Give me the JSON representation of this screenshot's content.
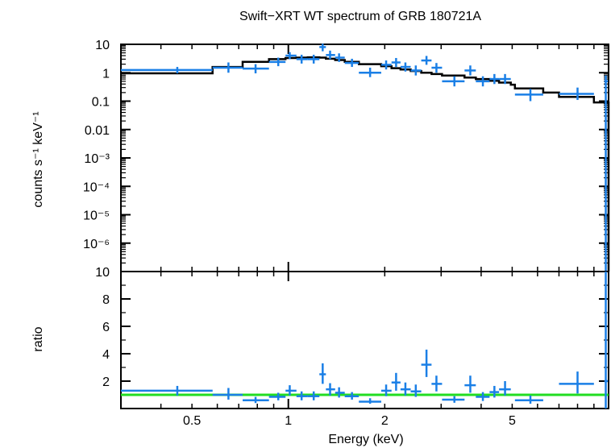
{
  "chart_data": [
    {
      "type": "scatter",
      "title": "Swift−XRT WT spectrum of GRB 180721A",
      "xlabel": "Energy (keV)",
      "ylabel": "counts s⁻¹ keV⁻¹",
      "xscale": "log",
      "yscale": "log",
      "xlim": [
        0.3,
        10.0
      ],
      "ylim": [
        1e-07,
        10
      ],
      "x_tick_labels": [
        "0.5",
        "1",
        "2",
        "5"
      ],
      "y_tick_labels": [
        "10",
        "1",
        "0.1",
        "0.01",
        "10⁻³",
        "10⁻⁴",
        "10⁻⁵",
        "10⁻⁶"
      ],
      "colors": {
        "data": "#1a7fe6",
        "model": "#000000"
      },
      "series": [
        {
          "name": "",
          "kind": "data",
          "points": [
            {
              "x": 0.45,
              "xlo": 0.3,
              "xhi": 0.58,
              "y": 1.25,
              "ylo": 0.95,
              "yhi": 1.6
            },
            {
              "x": 0.65,
              "xlo": 0.58,
              "xhi": 0.72,
              "y": 1.5,
              "ylo": 1.0,
              "yhi": 2.3
            },
            {
              "x": 0.79,
              "xlo": 0.72,
              "xhi": 0.87,
              "y": 1.4,
              "ylo": 0.95,
              "yhi": 2.0
            },
            {
              "x": 0.93,
              "xlo": 0.87,
              "xhi": 0.98,
              "y": 2.4,
              "ylo": 1.7,
              "yhi": 3.4
            },
            {
              "x": 1.01,
              "xlo": 0.98,
              "xhi": 1.06,
              "y": 4.0,
              "ylo": 3.0,
              "yhi": 5.3
            },
            {
              "x": 1.1,
              "xlo": 1.06,
              "xhi": 1.15,
              "y": 3.0,
              "ylo": 2.1,
              "yhi": 4.3
            },
            {
              "x": 1.2,
              "xlo": 1.15,
              "xhi": 1.25,
              "y": 3.0,
              "ylo": 2.1,
              "yhi": 4.3
            },
            {
              "x": 1.28,
              "xlo": 1.25,
              "xhi": 1.31,
              "y": 8.0,
              "ylo": 5.7,
              "yhi": 10.5
            },
            {
              "x": 1.35,
              "xlo": 1.31,
              "xhi": 1.4,
              "y": 4.2,
              "ylo": 3.0,
              "yhi": 6.0
            },
            {
              "x": 1.44,
              "xlo": 1.4,
              "xhi": 1.5,
              "y": 3.4,
              "ylo": 2.4,
              "yhi": 4.8
            },
            {
              "x": 1.58,
              "xlo": 1.5,
              "xhi": 1.66,
              "y": 2.2,
              "ylo": 1.6,
              "yhi": 3.1
            },
            {
              "x": 1.8,
              "xlo": 1.66,
              "xhi": 1.95,
              "y": 1.0,
              "ylo": 0.7,
              "yhi": 1.5
            },
            {
              "x": 2.02,
              "xlo": 1.95,
              "xhi": 2.1,
              "y": 1.9,
              "ylo": 1.3,
              "yhi": 2.7
            },
            {
              "x": 2.17,
              "xlo": 2.1,
              "xhi": 2.24,
              "y": 2.3,
              "ylo": 1.6,
              "yhi": 3.3
            },
            {
              "x": 2.32,
              "xlo": 2.24,
              "xhi": 2.41,
              "y": 1.6,
              "ylo": 1.1,
              "yhi": 2.3
            },
            {
              "x": 2.5,
              "xlo": 2.41,
              "xhi": 2.6,
              "y": 1.2,
              "ylo": 0.8,
              "yhi": 1.8
            },
            {
              "x": 2.7,
              "xlo": 2.6,
              "xhi": 2.8,
              "y": 2.7,
              "ylo": 1.9,
              "yhi": 3.9
            },
            {
              "x": 2.9,
              "xlo": 2.8,
              "xhi": 3.02,
              "y": 1.5,
              "ylo": 1.0,
              "yhi": 2.2
            },
            {
              "x": 3.3,
              "xlo": 3.02,
              "xhi": 3.55,
              "y": 0.5,
              "ylo": 0.33,
              "yhi": 0.75
            },
            {
              "x": 3.7,
              "xlo": 3.55,
              "xhi": 3.85,
              "y": 1.2,
              "ylo": 0.8,
              "yhi": 1.8
            },
            {
              "x": 4.05,
              "xlo": 3.85,
              "xhi": 4.25,
              "y": 0.5,
              "ylo": 0.33,
              "yhi": 0.75
            },
            {
              "x": 4.4,
              "xlo": 4.25,
              "xhi": 4.55,
              "y": 0.6,
              "ylo": 0.4,
              "yhi": 0.9
            },
            {
              "x": 4.75,
              "xlo": 4.55,
              "xhi": 4.95,
              "y": 0.6,
              "ylo": 0.4,
              "yhi": 0.9
            },
            {
              "x": 5.7,
              "xlo": 5.1,
              "xhi": 6.25,
              "y": 0.17,
              "ylo": 0.1,
              "yhi": 0.27
            },
            {
              "x": 8.0,
              "xlo": 7.0,
              "xhi": 9.0,
              "y": 0.18,
              "ylo": 0.11,
              "yhi": 0.3
            },
            {
              "x": 9.8,
              "xlo": 9.7,
              "xhi": 9.95,
              "y": 0.5,
              "ylo": 1e-07,
              "yhi": 0.8
            }
          ]
        },
        {
          "name": "",
          "kind": "model_step",
          "steps": [
            {
              "x0": 0.3,
              "x1": 0.58,
              "y": 0.95
            },
            {
              "x0": 0.58,
              "x1": 0.72,
              "y": 1.6
            },
            {
              "x0": 0.72,
              "x1": 0.87,
              "y": 2.4
            },
            {
              "x0": 0.87,
              "x1": 0.98,
              "y": 3.0
            },
            {
              "x0": 0.98,
              "x1": 1.06,
              "y": 3.3
            },
            {
              "x0": 1.06,
              "x1": 1.15,
              "y": 3.4
            },
            {
              "x0": 1.15,
              "x1": 1.25,
              "y": 3.5
            },
            {
              "x0": 1.25,
              "x1": 1.31,
              "y": 3.4
            },
            {
              "x0": 1.31,
              "x1": 1.4,
              "y": 3.1
            },
            {
              "x0": 1.4,
              "x1": 1.5,
              "y": 2.8
            },
            {
              "x0": 1.5,
              "x1": 1.66,
              "y": 2.4
            },
            {
              "x0": 1.66,
              "x1": 1.95,
              "y": 2.0
            },
            {
              "x0": 1.95,
              "x1": 2.1,
              "y": 1.7
            },
            {
              "x0": 2.1,
              "x1": 2.24,
              "y": 1.45
            },
            {
              "x0": 2.24,
              "x1": 2.41,
              "y": 1.3
            },
            {
              "x0": 2.41,
              "x1": 2.6,
              "y": 1.15
            },
            {
              "x0": 2.6,
              "x1": 2.8,
              "y": 1.0
            },
            {
              "x0": 2.8,
              "x1": 3.02,
              "y": 0.9
            },
            {
              "x0": 3.02,
              "x1": 3.55,
              "y": 0.8
            },
            {
              "x0": 3.55,
              "x1": 3.85,
              "y": 0.68
            },
            {
              "x0": 3.85,
              "x1": 4.25,
              "y": 0.6
            },
            {
              "x0": 4.25,
              "x1": 4.55,
              "y": 0.52
            },
            {
              "x0": 4.55,
              "x1": 4.95,
              "y": 0.45
            },
            {
              "x0": 4.95,
              "x1": 5.1,
              "y": 0.38
            },
            {
              "x0": 5.1,
              "x1": 6.25,
              "y": 0.28
            },
            {
              "x0": 6.25,
              "x1": 7.0,
              "y": 0.2
            },
            {
              "x0": 7.0,
              "x1": 9.0,
              "y": 0.14
            },
            {
              "x0": 9.0,
              "x1": 10.0,
              "y": 0.09
            }
          ]
        }
      ]
    },
    {
      "type": "scatter",
      "xlabel": "Energy (keV)",
      "ylabel": "ratio",
      "xscale": "log",
      "yscale": "linear",
      "xlim": [
        0.3,
        10.0
      ],
      "ylim": [
        0,
        10
      ],
      "x_tick_labels": [
        "0.5",
        "1",
        "2",
        "5"
      ],
      "y_tick_labels": [
        "10",
        "8",
        "6",
        "4",
        "2"
      ],
      "colors": {
        "data": "#1a7fe6",
        "reference": "#22dd22"
      },
      "reference_line": 1.0,
      "series": [
        {
          "name": "",
          "kind": "data",
          "points": [
            {
              "x": 0.45,
              "xlo": 0.3,
              "xhi": 0.58,
              "y": 1.3,
              "ylo": 0.95,
              "yhi": 1.65
            },
            {
              "x": 0.65,
              "xlo": 0.58,
              "xhi": 0.72,
              "y": 1.0,
              "ylo": 0.65,
              "yhi": 1.5
            },
            {
              "x": 0.79,
              "xlo": 0.72,
              "xhi": 0.87,
              "y": 0.6,
              "ylo": 0.4,
              "yhi": 0.85
            },
            {
              "x": 0.93,
              "xlo": 0.87,
              "xhi": 0.98,
              "y": 0.85,
              "ylo": 0.6,
              "yhi": 1.15
            },
            {
              "x": 1.01,
              "xlo": 0.98,
              "xhi": 1.06,
              "y": 1.3,
              "ylo": 0.95,
              "yhi": 1.7
            },
            {
              "x": 1.1,
              "xlo": 1.06,
              "xhi": 1.15,
              "y": 0.9,
              "ylo": 0.6,
              "yhi": 1.25
            },
            {
              "x": 1.2,
              "xlo": 1.15,
              "xhi": 1.25,
              "y": 0.9,
              "ylo": 0.6,
              "yhi": 1.25
            },
            {
              "x": 1.28,
              "xlo": 1.25,
              "xhi": 1.31,
              "y": 2.5,
              "ylo": 1.8,
              "yhi": 3.3
            },
            {
              "x": 1.35,
              "xlo": 1.31,
              "xhi": 1.4,
              "y": 1.4,
              "ylo": 0.95,
              "yhi": 1.85
            },
            {
              "x": 1.44,
              "xlo": 1.4,
              "xhi": 1.5,
              "y": 1.15,
              "ylo": 0.8,
              "yhi": 1.55
            },
            {
              "x": 1.58,
              "xlo": 1.5,
              "xhi": 1.66,
              "y": 0.9,
              "ylo": 0.65,
              "yhi": 1.2
            },
            {
              "x": 1.8,
              "xlo": 1.66,
              "xhi": 1.95,
              "y": 0.5,
              "ylo": 0.35,
              "yhi": 0.75
            },
            {
              "x": 2.02,
              "xlo": 1.95,
              "xhi": 2.1,
              "y": 1.3,
              "ylo": 0.9,
              "yhi": 1.75
            },
            {
              "x": 2.17,
              "xlo": 2.1,
              "xhi": 2.24,
              "y": 1.9,
              "ylo": 1.3,
              "yhi": 2.6
            },
            {
              "x": 2.32,
              "xlo": 2.24,
              "xhi": 2.41,
              "y": 1.4,
              "ylo": 0.95,
              "yhi": 1.9
            },
            {
              "x": 2.5,
              "xlo": 2.41,
              "xhi": 2.6,
              "y": 1.25,
              "ylo": 0.85,
              "yhi": 1.75
            },
            {
              "x": 2.7,
              "xlo": 2.6,
              "xhi": 2.8,
              "y": 3.2,
              "ylo": 2.3,
              "yhi": 4.3
            },
            {
              "x": 2.9,
              "xlo": 2.8,
              "xhi": 3.02,
              "y": 1.8,
              "ylo": 1.25,
              "yhi": 2.4
            },
            {
              "x": 3.3,
              "xlo": 3.02,
              "xhi": 3.55,
              "y": 0.65,
              "ylo": 0.42,
              "yhi": 0.9
            },
            {
              "x": 3.7,
              "xlo": 3.55,
              "xhi": 3.85,
              "y": 1.7,
              "ylo": 1.15,
              "yhi": 2.4
            },
            {
              "x": 4.05,
              "xlo": 3.85,
              "xhi": 4.25,
              "y": 0.85,
              "ylo": 0.55,
              "yhi": 1.2
            },
            {
              "x": 4.4,
              "xlo": 4.25,
              "xhi": 4.55,
              "y": 1.2,
              "ylo": 0.8,
              "yhi": 1.65
            },
            {
              "x": 4.75,
              "xlo": 4.55,
              "xhi": 4.95,
              "y": 1.4,
              "ylo": 0.95,
              "yhi": 2.0
            },
            {
              "x": 5.7,
              "xlo": 5.1,
              "xhi": 6.25,
              "y": 0.6,
              "ylo": 0.35,
              "yhi": 0.95
            },
            {
              "x": 8.0,
              "xlo": 7.0,
              "xhi": 9.0,
              "y": 1.8,
              "ylo": 1.1,
              "yhi": 2.7
            },
            {
              "x": 9.8,
              "xlo": 9.7,
              "xhi": 9.95,
              "y": 2.0,
              "ylo": 0.0,
              "yhi": 10.0
            }
          ]
        }
      ]
    }
  ]
}
